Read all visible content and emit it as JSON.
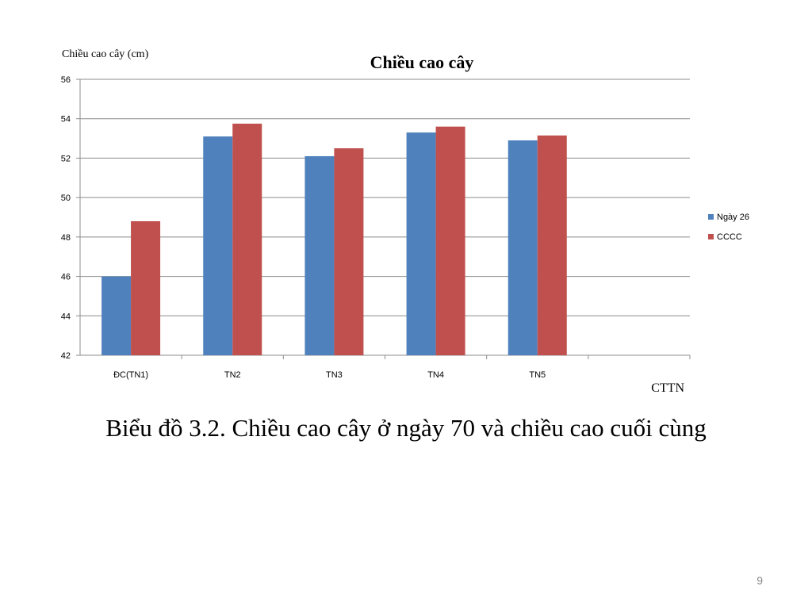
{
  "chart_data": {
    "type": "bar",
    "title": "Chiều cao cây",
    "ylabel": "Chiều cao cây (cm)",
    "xlabel": "CTTN",
    "categories": [
      "ĐC(TN1)",
      "TN2",
      "TN3",
      "TN4",
      "TN5",
      ""
    ],
    "series": [
      {
        "name": "Ngày 26",
        "color": "#4F81BD",
        "values": [
          46.0,
          53.1,
          52.1,
          53.3,
          52.9,
          null
        ]
      },
      {
        "name": "CCCC",
        "color": "#C0504D",
        "values": [
          48.8,
          53.75,
          52.5,
          53.6,
          53.15,
          null
        ]
      }
    ],
    "ylim": [
      42,
      56
    ],
    "yticks": [
      42,
      44,
      46,
      48,
      50,
      52,
      54,
      56
    ],
    "grid": true,
    "legend": "right"
  },
  "caption": "Biểu đồ 3.2. Chiều cao cây ở ngày 70 và chiều cao cuối cùng",
  "page_number": "9"
}
